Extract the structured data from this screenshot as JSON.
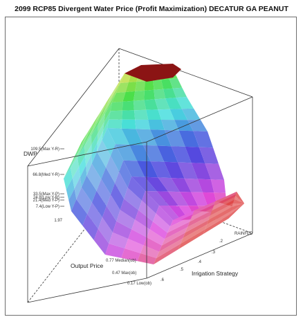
{
  "chart_data": {
    "type": "surface3d",
    "title": "2099 RCP85 Divergent Water Price (Profit Maximization) DECATUR GA PEANUT",
    "zlabel": "DWP",
    "xlabel": "Output Price",
    "ylabel": "Irrigation Strategy",
    "z_ticks": [
      {
        "label": "109.5(Max Y-R)",
        "value": 109.5
      },
      {
        "label": "66.8(Med Y-R)",
        "value": 66.8
      },
      {
        "label": "33.5(Max Y-P)",
        "value": 33.5
      },
      {
        "label": "24.8(Low Y-R)",
        "value": 24.8
      },
      {
        "label": "21.4(Med Y-P)",
        "value": 21.4
      },
      {
        "label": "7.4(Low Y-P)",
        "value": 7.4
      }
    ],
    "z_extra_label": "1.97",
    "x_ticks": [
      "0.77 Median(ob)",
      "0.47 Max(ob)",
      "0.17 Low(ob)"
    ],
    "y_ticks": [
      "RAINFED",
      ".2",
      ".3",
      ".4",
      ".5",
      ".6"
    ],
    "surface_color": "rainbow (red = high, blue/cyan = mid, green/yellow = low)"
  }
}
